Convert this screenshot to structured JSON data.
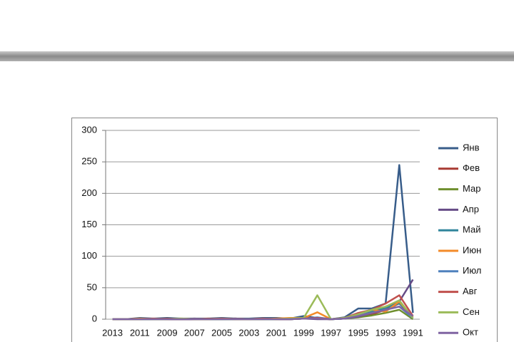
{
  "chart_data": {
    "type": "line",
    "categories": [
      "2013",
      null,
      "2011",
      null,
      "2009",
      null,
      "2007",
      null,
      "2005",
      null,
      "2003",
      null,
      "2001",
      null,
      "1999",
      null,
      "1997",
      null,
      "1995",
      null,
      "1993",
      null,
      "1991"
    ],
    "ylim": [
      0,
      300
    ],
    "yticks": [
      0,
      50,
      100,
      150,
      200,
      250,
      300
    ],
    "grid": true,
    "legend": "right",
    "series": [
      {
        "name": "Янв",
        "color": "#385d8a",
        "values": [
          0,
          0,
          2,
          1,
          2,
          1,
          1,
          1,
          2,
          1,
          1,
          2,
          2,
          1,
          5,
          2,
          0,
          3,
          17,
          17,
          25,
          245,
          10
        ]
      },
      {
        "name": "Фев",
        "color": "#a83a32",
        "values": [
          0,
          0,
          1,
          0,
          1,
          0,
          0,
          1,
          0,
          1,
          0,
          1,
          0,
          1,
          2,
          1,
          0,
          1,
          5,
          8,
          15,
          25,
          5
        ]
      },
      {
        "name": "Мар",
        "color": "#6f8f2e",
        "values": [
          0,
          0,
          0,
          0,
          0,
          0,
          0,
          0,
          0,
          0,
          0,
          0,
          0,
          0,
          1,
          1,
          0,
          1,
          3,
          6,
          10,
          15,
          0
        ]
      },
      {
        "name": "Апр",
        "color": "#664b86",
        "values": [
          0,
          0,
          0,
          0,
          0,
          0,
          1,
          0,
          0,
          1,
          0,
          0,
          1,
          0,
          1,
          0,
          0,
          1,
          4,
          10,
          20,
          28,
          63
        ]
      },
      {
        "name": "Май",
        "color": "#31859c",
        "values": [
          0,
          0,
          0,
          0,
          0,
          0,
          0,
          0,
          0,
          0,
          0,
          0,
          0,
          0,
          1,
          2,
          0,
          1,
          5,
          12,
          18,
          25,
          3
        ]
      },
      {
        "name": "Июн",
        "color": "#f38b2a",
        "values": [
          0,
          0,
          1,
          0,
          0,
          1,
          0,
          0,
          1,
          0,
          0,
          0,
          1,
          2,
          2,
          11,
          0,
          2,
          8,
          15,
          12,
          28,
          3
        ]
      },
      {
        "name": "Июл",
        "color": "#4f81bd",
        "values": [
          0,
          0,
          0,
          0,
          0,
          0,
          0,
          0,
          0,
          0,
          0,
          0,
          0,
          0,
          1,
          3,
          0,
          1,
          6,
          10,
          15,
          20,
          2
        ]
      },
      {
        "name": "Авг",
        "color": "#c0504d",
        "values": [
          0,
          0,
          0,
          1,
          0,
          0,
          0,
          0,
          1,
          0,
          0,
          1,
          0,
          0,
          1,
          2,
          0,
          2,
          10,
          15,
          25,
          38,
          5
        ]
      },
      {
        "name": "Сен",
        "color": "#9bbb59",
        "values": [
          0,
          0,
          0,
          0,
          0,
          1,
          0,
          0,
          0,
          0,
          0,
          0,
          0,
          1,
          2,
          38,
          0,
          2,
          8,
          15,
          20,
          30,
          2
        ]
      },
      {
        "name": "Окт",
        "color": "#8064a2",
        "values": [
          0,
          0,
          0,
          0,
          0,
          0,
          0,
          0,
          0,
          0,
          0,
          0,
          0,
          0,
          1,
          1,
          0,
          1,
          5,
          10,
          15,
          20,
          5
        ]
      }
    ]
  }
}
